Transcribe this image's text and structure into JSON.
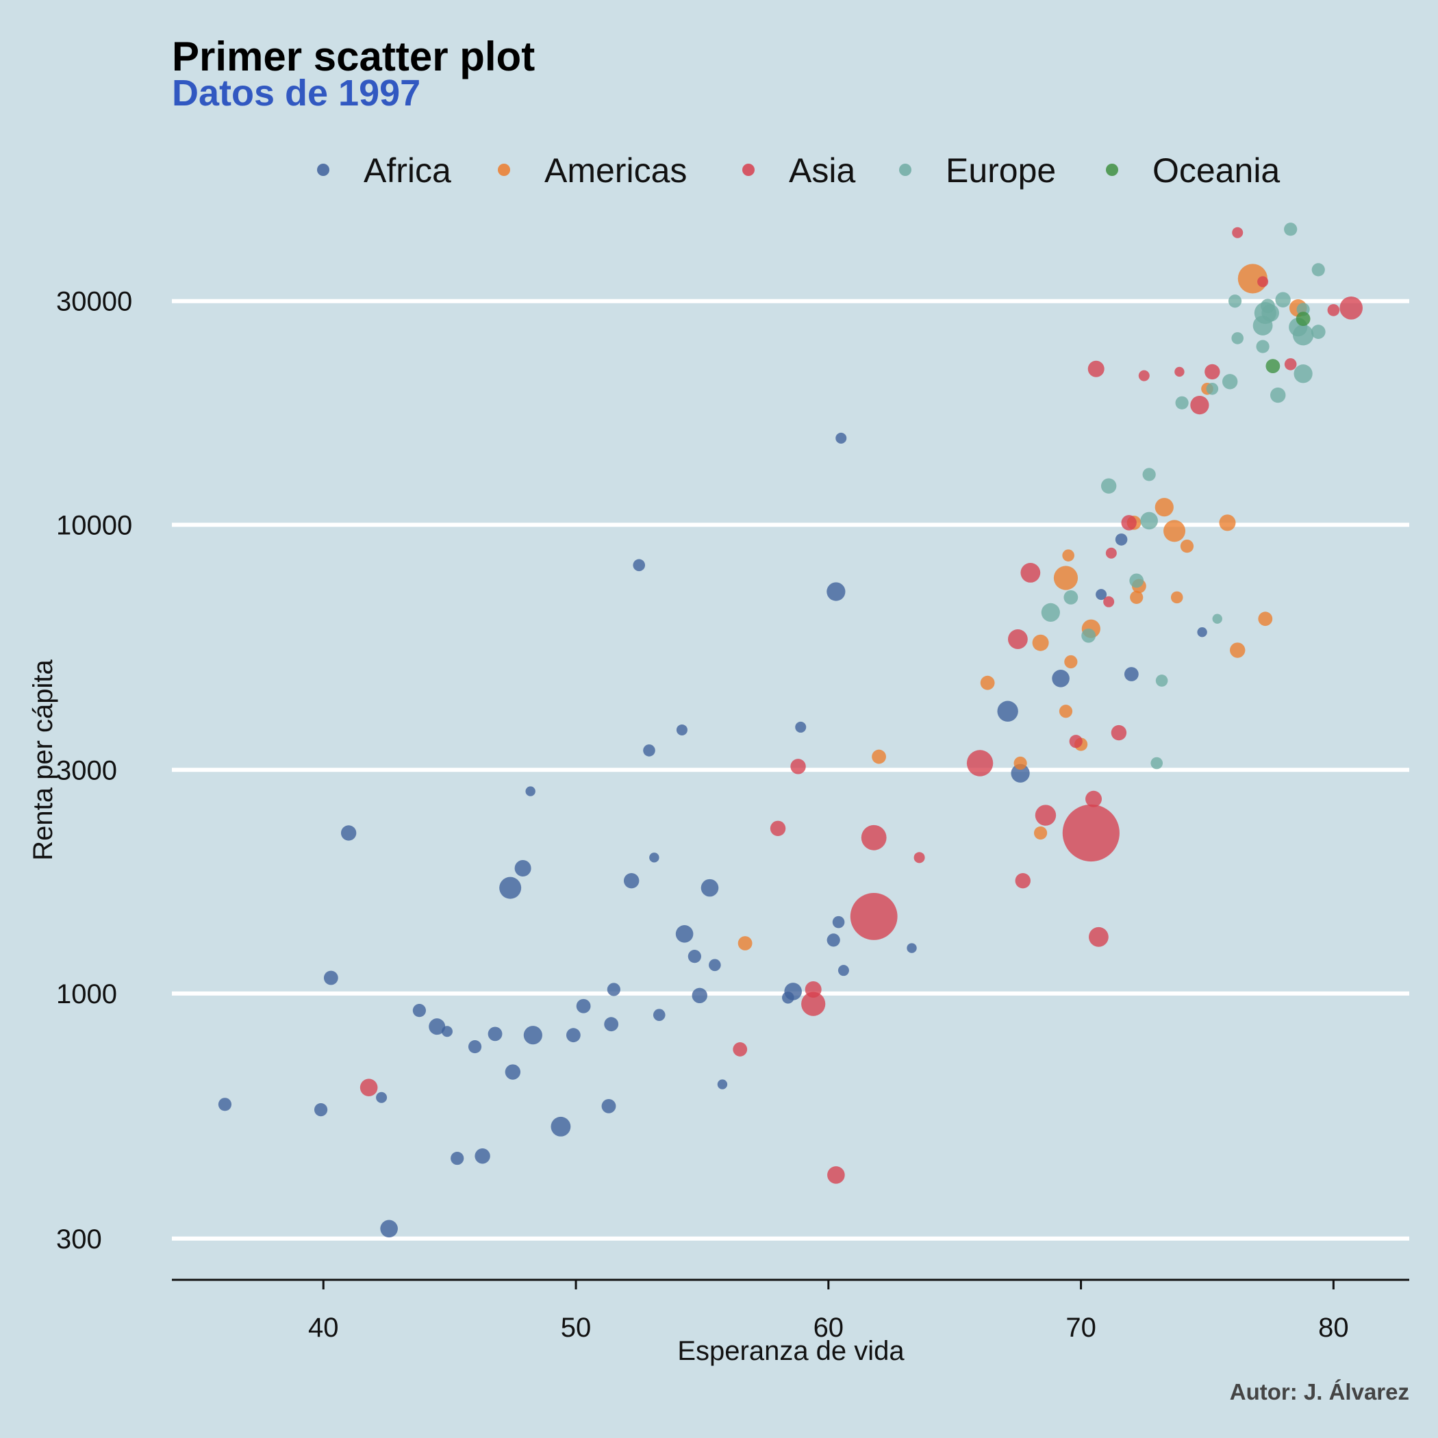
{
  "chart_data": {
    "type": "scatter",
    "title": "Primer scatter plot",
    "subtitle": "Datos de 1997",
    "xlabel": "Esperanza de vida",
    "ylabel": "Renta per cápita",
    "caption": "Autor: J. Álvarez",
    "x_scale": "linear",
    "y_scale": "log",
    "xlim": [
      34,
      83
    ],
    "ylim": [
      245,
      48000
    ],
    "x_ticks": [
      40,
      50,
      60,
      70,
      80
    ],
    "y_ticks": [
      300,
      1000,
      3000,
      10000,
      30000
    ],
    "x_tick_labels": [
      "40",
      "50",
      "60",
      "70",
      "80"
    ],
    "y_tick_labels": [
      "300",
      "1000",
      "3000",
      "10000",
      "30000"
    ],
    "grid": "horizontal major",
    "legend_position": "top",
    "colors": {
      "Africa": "#3e609a",
      "Americas": "#ec7d2c",
      "Asia": "#d6404e",
      "Europe": "#6eaca2",
      "Oceania": "#3f9141",
      "background": "#cddfe6"
    },
    "series": [
      {
        "name": "Africa",
        "points": [
          [
            36.1,
            580,
            1.2
          ],
          [
            39.9,
            565,
            1.2
          ],
          [
            40.3,
            1080,
            1.3
          ],
          [
            41.0,
            2200,
            1.4
          ],
          [
            42.3,
            600,
            1.0
          ],
          [
            42.6,
            315,
            1.6
          ],
          [
            43.8,
            920,
            1.2
          ],
          [
            44.5,
            850,
            1.5
          ],
          [
            44.9,
            830,
            1.0
          ],
          [
            45.3,
            445,
            1.2
          ],
          [
            46.0,
            770,
            1.2
          ],
          [
            46.3,
            450,
            1.4
          ],
          [
            46.8,
            820,
            1.3
          ],
          [
            47.4,
            1680,
            2.0
          ],
          [
            47.5,
            680,
            1.4
          ],
          [
            47.9,
            1850,
            1.5
          ],
          [
            48.2,
            2700,
            0.9
          ],
          [
            48.3,
            815,
            1.7
          ],
          [
            49.4,
            520,
            1.8
          ],
          [
            49.9,
            815,
            1.3
          ],
          [
            50.3,
            940,
            1.3
          ],
          [
            51.3,
            575,
            1.3
          ],
          [
            51.4,
            860,
            1.3
          ],
          [
            51.5,
            1020,
            1.2
          ],
          [
            52.2,
            1740,
            1.4
          ],
          [
            52.5,
            8200,
            1.1
          ],
          [
            52.9,
            3300,
            1.1
          ],
          [
            53.1,
            1950,
            0.9
          ],
          [
            53.3,
            900,
            1.1
          ],
          [
            54.2,
            3650,
            1.0
          ],
          [
            54.3,
            1340,
            1.6
          ],
          [
            54.7,
            1200,
            1.2
          ],
          [
            54.9,
            990,
            1.4
          ],
          [
            55.3,
            1680,
            1.6
          ],
          [
            55.5,
            1150,
            1.1
          ],
          [
            55.8,
            640,
            0.9
          ],
          [
            58.4,
            980,
            1.1
          ],
          [
            58.6,
            1010,
            1.6
          ],
          [
            58.9,
            3700,
            1.0
          ],
          [
            60.2,
            1300,
            1.2
          ],
          [
            60.3,
            7200,
            1.7
          ],
          [
            60.4,
            1420,
            1.1
          ],
          [
            60.5,
            15300,
            1.0
          ],
          [
            60.6,
            1120,
            1.0
          ],
          [
            63.3,
            1250,
            0.9
          ],
          [
            67.1,
            4000,
            1.9
          ],
          [
            67.6,
            2950,
            1.7
          ],
          [
            69.2,
            4700,
            1.6
          ],
          [
            70.8,
            7100,
            1.0
          ],
          [
            71.6,
            9300,
            1.1
          ],
          [
            72.0,
            4800,
            1.3
          ],
          [
            74.8,
            5900,
            0.9
          ]
        ]
      },
      {
        "name": "Americas",
        "points": [
          [
            56.7,
            1280,
            1.3
          ],
          [
            62.0,
            3200,
            1.3
          ],
          [
            66.3,
            4600,
            1.3
          ],
          [
            67.6,
            3100,
            1.2
          ],
          [
            68.4,
            2200,
            1.2
          ],
          [
            68.4,
            5600,
            1.5
          ],
          [
            69.4,
            7700,
            2.2
          ],
          [
            69.4,
            4000,
            1.2
          ],
          [
            69.5,
            8600,
            1.1
          ],
          [
            69.6,
            5100,
            1.2
          ],
          [
            70.0,
            3400,
            1.2
          ],
          [
            70.4,
            6000,
            1.7
          ],
          [
            72.1,
            10100,
            1.3
          ],
          [
            72.2,
            7000,
            1.2
          ],
          [
            72.3,
            7400,
            1.3
          ],
          [
            73.3,
            10900,
            1.7
          ],
          [
            73.7,
            9700,
            2.0
          ],
          [
            73.8,
            7000,
            1.1
          ],
          [
            74.2,
            9000,
            1.2
          ],
          [
            75.0,
            19500,
            1.1
          ],
          [
            75.8,
            10100,
            1.5
          ],
          [
            76.2,
            5400,
            1.4
          ],
          [
            76.8,
            33500,
            2.7
          ],
          [
            77.3,
            6300,
            1.3
          ],
          [
            78.6,
            29000,
            1.6
          ]
        ]
      },
      {
        "name": "Asia",
        "points": [
          [
            41.8,
            630,
            1.6
          ],
          [
            56.5,
            760,
            1.3
          ],
          [
            58.0,
            2250,
            1.4
          ],
          [
            58.8,
            3050,
            1.4
          ],
          [
            59.4,
            1020,
            1.5
          ],
          [
            59.4,
            950,
            2.2
          ],
          [
            60.3,
            410,
            1.6
          ],
          [
            61.8,
            1460,
            4.3
          ],
          [
            61.8,
            2150,
            2.3
          ],
          [
            63.6,
            1950,
            1.0
          ],
          [
            66.0,
            3100,
            2.4
          ],
          [
            67.5,
            5700,
            1.8
          ],
          [
            67.7,
            1740,
            1.4
          ],
          [
            68.0,
            7900,
            1.8
          ],
          [
            68.6,
            2400,
            1.9
          ],
          [
            69.8,
            3450,
            1.2
          ],
          [
            70.4,
            2200,
            5.2
          ],
          [
            70.5,
            2600,
            1.5
          ],
          [
            70.6,
            21500,
            1.5
          ],
          [
            70.7,
            1320,
            1.8
          ],
          [
            71.1,
            6850,
            1.0
          ],
          [
            71.2,
            8700,
            1.0
          ],
          [
            71.5,
            3600,
            1.4
          ],
          [
            71.9,
            10100,
            1.4
          ],
          [
            72.5,
            20800,
            1.0
          ],
          [
            73.9,
            21200,
            0.9
          ],
          [
            74.7,
            18000,
            1.7
          ],
          [
            75.2,
            21200,
            1.4
          ],
          [
            76.2,
            42000,
            1.0
          ],
          [
            77.2,
            33000,
            1.0
          ],
          [
            78.3,
            22000,
            1.1
          ],
          [
            80.0,
            28700,
            1.1
          ],
          [
            80.7,
            29000,
            2.1
          ]
        ]
      },
      {
        "name": "Europe",
        "points": [
          [
            68.8,
            6500,
            1.7
          ],
          [
            69.6,
            7000,
            1.3
          ],
          [
            70.3,
            5800,
            1.3
          ],
          [
            71.1,
            12100,
            1.4
          ],
          [
            72.2,
            7600,
            1.3
          ],
          [
            72.7,
            10200,
            1.6
          ],
          [
            72.7,
            12800,
            1.2
          ],
          [
            73.0,
            3100,
            1.1
          ],
          [
            73.2,
            4650,
            1.1
          ],
          [
            74.0,
            18200,
            1.2
          ],
          [
            75.2,
            19500,
            1.1
          ],
          [
            75.4,
            6300,
            0.9
          ],
          [
            75.9,
            20200,
            1.4
          ],
          [
            76.1,
            30000,
            1.2
          ],
          [
            76.2,
            25000,
            1.1
          ],
          [
            77.2,
            24000,
            1.2
          ],
          [
            77.2,
            26600,
            1.8
          ],
          [
            77.3,
            28300,
            2.0
          ],
          [
            77.4,
            29300,
            1.3
          ],
          [
            77.5,
            28300,
            1.6
          ],
          [
            77.8,
            18900,
            1.4
          ],
          [
            78.0,
            30200,
            1.4
          ],
          [
            78.3,
            42700,
            1.2
          ],
          [
            78.6,
            26400,
            1.7
          ],
          [
            78.8,
            25400,
            1.9
          ],
          [
            78.8,
            21000,
            1.7
          ],
          [
            78.8,
            28800,
            1.2
          ],
          [
            79.4,
            35000,
            1.2
          ],
          [
            79.4,
            25800,
            1.3
          ]
        ]
      },
      {
        "name": "Oceania",
        "points": [
          [
            77.6,
            21800,
            1.3
          ],
          [
            78.8,
            27500,
            1.3
          ]
        ]
      }
    ]
  }
}
